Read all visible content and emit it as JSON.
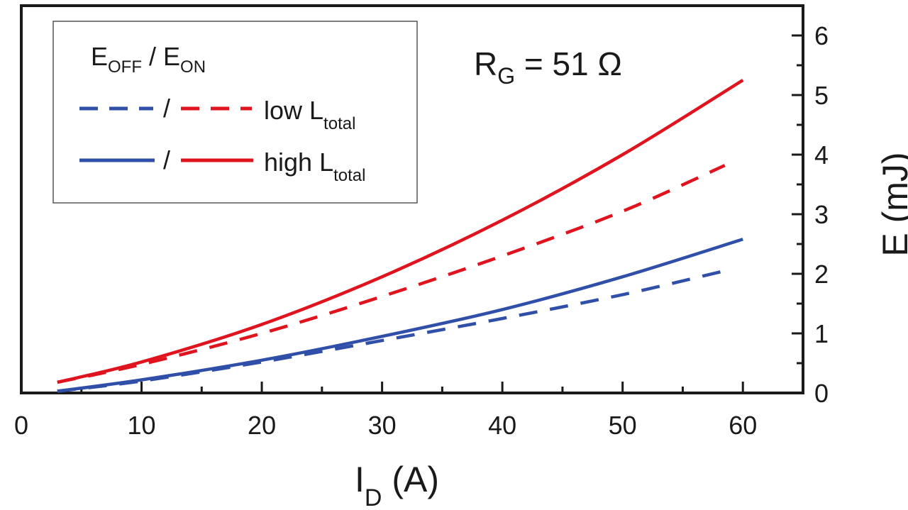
{
  "chart_data": {
    "type": "line",
    "annotation": {
      "main": "R",
      "sub": "G",
      "rest": " = 51 Ω"
    },
    "xlabel": {
      "main": "I",
      "sub": "D",
      "rest": " (A)"
    },
    "ylabel": "E (mJ)",
    "xlim": [
      0,
      65
    ],
    "ylim": [
      0,
      6.5
    ],
    "xticks": [
      0,
      10,
      20,
      30,
      40,
      50,
      60
    ],
    "xtick_labels": [
      "0",
      "10",
      "20",
      "30",
      "40",
      "50",
      "60"
    ],
    "yticks": [
      0,
      1,
      2,
      3,
      4,
      5,
      6
    ],
    "ytick_labels": [
      "0",
      "1",
      "2",
      "3",
      "4",
      "5",
      "6"
    ],
    "y_axis_side": "right",
    "grid": false,
    "legend": {
      "placement": "top-left",
      "header": {
        "e1": "E",
        "s1": "OFF",
        "sep": " / ",
        "e2": "E",
        "s2": "ON"
      },
      "rows": [
        {
          "style": "dashed",
          "sep": "/",
          "text_main": "low L",
          "text_sub": "total"
        },
        {
          "style": "solid",
          "sep": "/",
          "text_main": "high L",
          "text_sub": "total"
        }
      ]
    },
    "colors": {
      "off": "#2f4fa8",
      "on": "#e0141e",
      "axis": "#1a1a1a"
    },
    "series": [
      {
        "quantity": "EON",
        "inductance": "high",
        "color": "#e0141e",
        "style": "solid",
        "x": [
          3,
          10,
          20,
          30,
          40,
          50,
          60
        ],
        "y": [
          0.18,
          0.52,
          1.15,
          1.95,
          2.9,
          4.0,
          5.25
        ]
      },
      {
        "quantity": "EON",
        "inductance": "low",
        "color": "#e0141e",
        "style": "dashed",
        "x": [
          3,
          10,
          20,
          30,
          40,
          50,
          58.5
        ],
        "y": [
          0.18,
          0.48,
          1.0,
          1.62,
          2.3,
          3.05,
          3.82
        ]
      },
      {
        "quantity": "EOFF",
        "inductance": "high",
        "color": "#2f4fa8",
        "style": "solid",
        "x": [
          3,
          10,
          20,
          30,
          40,
          50,
          60
        ],
        "y": [
          0.03,
          0.22,
          0.55,
          0.95,
          1.4,
          1.95,
          2.58
        ]
      },
      {
        "quantity": "EOFF",
        "inductance": "low",
        "color": "#2f4fa8",
        "style": "dashed",
        "x": [
          3,
          10,
          20,
          30,
          40,
          50,
          58.5
        ],
        "y": [
          0.03,
          0.2,
          0.52,
          0.88,
          1.25,
          1.65,
          2.05
        ]
      }
    ]
  }
}
